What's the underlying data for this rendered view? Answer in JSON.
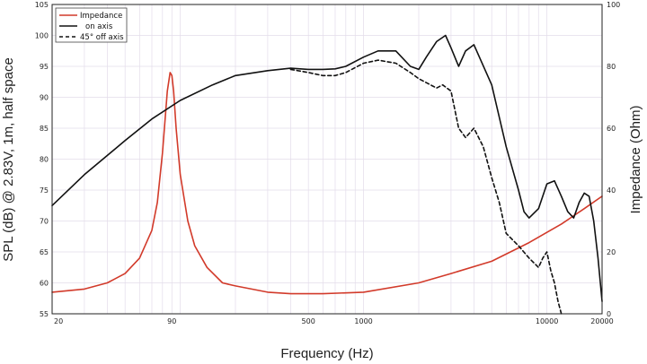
{
  "chart_data": {
    "type": "line",
    "xlabel": "Frequency (Hz)",
    "ylabel": "SPL (dB) @ 2.83V, 1m, half space",
    "y2label": "Impedance (Ohm)",
    "x_scale": "log",
    "xlim": [
      20,
      20000
    ],
    "ylim": [
      55,
      105
    ],
    "y2lim": [
      0,
      100
    ],
    "grid": true,
    "legend_position": "top-left",
    "x_ticks": [
      "20",
      "90",
      "500",
      "1000",
      "10000",
      "20000"
    ],
    "x_tick_values": [
      20,
      90,
      500,
      1000,
      10000,
      20000
    ],
    "y_ticks": [
      "55",
      "60",
      "65",
      "70",
      "75",
      "80",
      "85",
      "90",
      "95",
      "100",
      "105"
    ],
    "y2_ticks": [
      "0",
      "20",
      "40",
      "60",
      "80",
      "100"
    ],
    "series": [
      {
        "name": "Impedance",
        "axis": "right",
        "color": "#d23a2a",
        "dash": "solid",
        "x": [
          20,
          30,
          40,
          50,
          60,
          70,
          75,
          80,
          85,
          88,
          90,
          92,
          95,
          100,
          110,
          120,
          140,
          170,
          200,
          300,
          400,
          600,
          1000,
          2000,
          3000,
          5000,
          8000,
          12000,
          16000,
          20000
        ],
        "y": [
          7,
          8,
          10,
          13,
          18,
          27,
          36,
          52,
          72,
          78,
          77,
          72,
          60,
          45,
          30,
          22,
          15,
          10,
          9,
          7,
          6.5,
          6.5,
          7,
          10,
          13,
          17,
          23,
          29,
          34,
          38
        ]
      },
      {
        "name": "on axis",
        "axis": "left",
        "color": "#111111",
        "dash": "solid",
        "x": [
          20,
          30,
          50,
          70,
          100,
          150,
          200,
          300,
          400,
          500,
          600,
          700,
          800,
          1000,
          1200,
          1500,
          1800,
          2000,
          2200,
          2500,
          2800,
          3000,
          3300,
          3600,
          4000,
          5000,
          6000,
          7000,
          7500,
          8000,
          9000,
          10000,
          11000,
          12000,
          13000,
          14000,
          15000,
          16000,
          17000,
          18000,
          19000,
          20000
        ],
        "y": [
          72.5,
          77.5,
          83,
          86.5,
          89.5,
          92,
          93.5,
          94.3,
          94.7,
          94.5,
          94.5,
          94.6,
          95,
          96.5,
          97.5,
          97.5,
          95,
          94.5,
          96.5,
          99,
          100,
          98,
          95,
          97.5,
          98.5,
          92,
          82,
          75,
          71.5,
          70.5,
          72,
          76,
          76.5,
          74,
          71.5,
          70.5,
          73,
          74.5,
          74,
          70,
          64,
          57
        ]
      },
      {
        "name": "45° off axis",
        "axis": "left",
        "color": "#111111",
        "dash": "dashed",
        "x": [
          400,
          500,
          600,
          700,
          800,
          1000,
          1200,
          1500,
          1800,
          2000,
          2500,
          2700,
          3000,
          3300,
          3600,
          4000,
          4500,
          5000,
          5500,
          6000,
          7000,
          8000,
          9000,
          9500,
          10000,
          10500,
          11000,
          11500,
          12000
        ],
        "y": [
          94.5,
          94,
          93.5,
          93.5,
          94,
          95.5,
          96,
          95.5,
          94,
          93,
          91.5,
          92,
          91,
          85,
          83.5,
          85,
          82,
          77,
          73,
          68,
          66,
          64,
          62.5,
          64,
          65,
          62,
          60,
          57,
          55
        ]
      }
    ]
  }
}
